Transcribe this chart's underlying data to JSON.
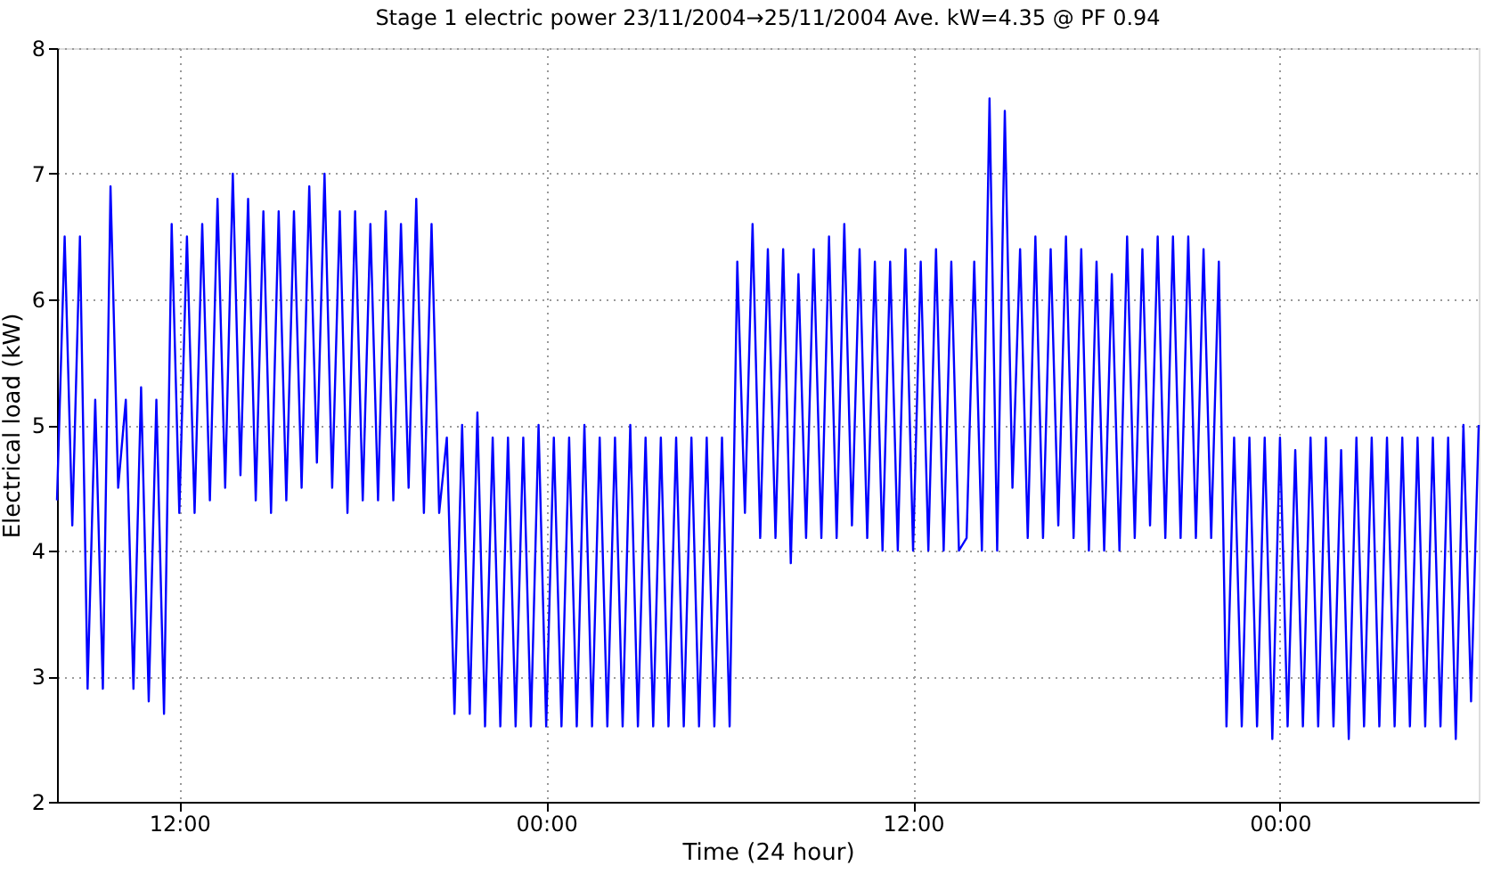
{
  "chart_data": {
    "type": "line",
    "title": "Stage 1 electric power 23/11/2004→25/11/2004 Ave. kW=4.35 @ PF 0.94",
    "xlabel": "Time (24 hour)",
    "ylabel": "Electrical load (kW)",
    "xlim": [
      "2004-11-23T08:00",
      "2004-11-25T06:30"
    ],
    "xticks": [
      {
        "value": "2004-11-23T12:00",
        "label": "12:00"
      },
      {
        "value": "2004-11-24T00:00",
        "label": "00:00"
      },
      {
        "value": "2004-11-24T12:00",
        "label": "12:00"
      },
      {
        "value": "2004-11-25T00:00",
        "label": "00:00"
      }
    ],
    "ylim": [
      2,
      8
    ],
    "yticks": [
      2,
      3,
      4,
      5,
      6,
      7,
      8
    ],
    "grid": true,
    "line_style": "solid",
    "marker": "none",
    "series": [
      {
        "color": "#0000ff",
        "x": [
          "2004-11-23T08:00",
          "2004-11-23T08:15",
          "2004-11-23T08:30",
          "2004-11-23T08:45",
          "2004-11-23T09:00",
          "2004-11-23T09:15",
          "2004-11-23T09:30",
          "2004-11-23T09:45",
          "2004-11-23T10:00",
          "2004-11-23T10:15",
          "2004-11-23T10:30",
          "2004-11-23T10:45",
          "2004-11-23T11:00",
          "2004-11-23T11:15",
          "2004-11-23T11:30",
          "2004-11-23T11:45",
          "2004-11-23T12:00",
          "2004-11-23T12:15",
          "2004-11-23T12:30",
          "2004-11-23T12:45",
          "2004-11-23T13:00",
          "2004-11-23T13:15",
          "2004-11-23T13:30",
          "2004-11-23T13:45",
          "2004-11-23T14:00",
          "2004-11-23T14:15",
          "2004-11-23T14:30",
          "2004-11-23T14:45",
          "2004-11-23T15:00",
          "2004-11-23T15:15",
          "2004-11-23T15:30",
          "2004-11-23T15:45",
          "2004-11-23T16:00",
          "2004-11-23T16:15",
          "2004-11-23T16:30",
          "2004-11-23T16:45",
          "2004-11-23T17:00",
          "2004-11-23T17:15",
          "2004-11-23T17:30",
          "2004-11-23T17:45",
          "2004-11-23T18:00",
          "2004-11-23T18:15",
          "2004-11-23T18:30",
          "2004-11-23T18:45",
          "2004-11-23T19:00",
          "2004-11-23T19:15",
          "2004-11-23T19:30",
          "2004-11-23T19:45",
          "2004-11-23T20:00",
          "2004-11-23T20:15",
          "2004-11-23T20:30",
          "2004-11-23T20:45",
          "2004-11-23T21:00",
          "2004-11-23T21:15",
          "2004-11-23T21:30",
          "2004-11-23T21:45",
          "2004-11-23T22:00",
          "2004-11-23T22:15",
          "2004-11-23T22:30",
          "2004-11-23T22:45",
          "2004-11-23T23:00",
          "2004-11-23T23:15",
          "2004-11-23T23:30",
          "2004-11-23T23:45",
          "2004-11-24T00:00",
          "2004-11-24T00:15",
          "2004-11-24T00:30",
          "2004-11-24T00:45",
          "2004-11-24T01:00",
          "2004-11-24T01:15",
          "2004-11-24T01:30",
          "2004-11-24T01:45",
          "2004-11-24T02:00",
          "2004-11-24T02:15",
          "2004-11-24T02:30",
          "2004-11-24T02:45",
          "2004-11-24T03:00",
          "2004-11-24T03:15",
          "2004-11-24T03:30",
          "2004-11-24T03:45",
          "2004-11-24T04:00",
          "2004-11-24T04:15",
          "2004-11-24T04:30",
          "2004-11-24T04:45",
          "2004-11-24T05:00",
          "2004-11-24T05:15",
          "2004-11-24T05:30",
          "2004-11-24T05:45",
          "2004-11-24T06:00",
          "2004-11-24T06:15",
          "2004-11-24T06:30",
          "2004-11-24T06:45",
          "2004-11-24T07:00",
          "2004-11-24T07:15",
          "2004-11-24T07:30",
          "2004-11-24T07:45",
          "2004-11-24T08:00",
          "2004-11-24T08:15",
          "2004-11-24T08:30",
          "2004-11-24T08:45",
          "2004-11-24T09:00",
          "2004-11-24T09:15",
          "2004-11-24T09:30",
          "2004-11-24T09:45",
          "2004-11-24T10:00",
          "2004-11-24T10:15",
          "2004-11-24T10:30",
          "2004-11-24T10:45",
          "2004-11-24T11:00",
          "2004-11-24T11:15",
          "2004-11-24T11:30",
          "2004-11-24T11:45",
          "2004-11-24T12:00",
          "2004-11-24T12:15",
          "2004-11-24T12:30",
          "2004-11-24T12:45",
          "2004-11-24T13:00",
          "2004-11-24T13:15",
          "2004-11-24T13:30",
          "2004-11-24T13:45",
          "2004-11-24T14:00",
          "2004-11-24T14:15",
          "2004-11-24T14:30",
          "2004-11-24T14:45",
          "2004-11-24T15:00",
          "2004-11-24T15:15",
          "2004-11-24T15:30",
          "2004-11-24T15:45",
          "2004-11-24T16:00",
          "2004-11-24T16:15",
          "2004-11-24T16:30",
          "2004-11-24T16:45",
          "2004-11-24T17:00",
          "2004-11-24T17:15",
          "2004-11-24T17:30",
          "2004-11-24T17:45",
          "2004-11-24T18:00",
          "2004-11-24T18:15",
          "2004-11-24T18:30",
          "2004-11-24T18:45",
          "2004-11-24T19:00",
          "2004-11-24T19:15",
          "2004-11-24T19:30",
          "2004-11-24T19:45",
          "2004-11-24T20:00",
          "2004-11-24T20:15",
          "2004-11-24T20:30",
          "2004-11-24T20:45",
          "2004-11-24T21:00",
          "2004-11-24T21:15",
          "2004-11-24T21:30",
          "2004-11-24T21:45",
          "2004-11-24T22:00",
          "2004-11-24T22:15",
          "2004-11-24T22:30",
          "2004-11-24T22:45",
          "2004-11-24T23:00",
          "2004-11-24T23:15",
          "2004-11-24T23:30",
          "2004-11-24T23:45",
          "2004-11-25T00:00",
          "2004-11-25T00:15",
          "2004-11-25T00:30",
          "2004-11-25T00:45",
          "2004-11-25T01:00",
          "2004-11-25T01:15",
          "2004-11-25T01:30",
          "2004-11-25T01:45",
          "2004-11-25T02:00",
          "2004-11-25T02:15",
          "2004-11-25T02:30",
          "2004-11-25T02:45",
          "2004-11-25T03:00",
          "2004-11-25T03:15",
          "2004-11-25T03:30",
          "2004-11-25T03:45",
          "2004-11-25T04:00",
          "2004-11-25T04:15",
          "2004-11-25T04:30",
          "2004-11-25T04:45",
          "2004-11-25T05:00",
          "2004-11-25T05:15",
          "2004-11-25T05:30",
          "2004-11-25T05:45",
          "2004-11-25T06:00",
          "2004-11-25T06:15",
          "2004-11-25T06:30"
        ],
        "values": [
          4.4,
          6.5,
          4.2,
          6.5,
          2.9,
          5.2,
          2.9,
          6.9,
          4.5,
          5.2,
          2.9,
          5.3,
          2.8,
          5.2,
          2.7,
          6.6,
          4.3,
          6.5,
          4.3,
          6.6,
          4.4,
          6.8,
          4.5,
          7.0,
          4.6,
          6.8,
          4.4,
          6.7,
          4.3,
          6.7,
          4.4,
          6.7,
          4.5,
          6.9,
          4.7,
          7.0,
          4.5,
          6.7,
          4.3,
          6.7,
          4.4,
          6.6,
          4.4,
          6.7,
          4.4,
          6.6,
          4.5,
          6.8,
          4.3,
          6.6,
          4.3,
          4.9,
          2.7,
          5.0,
          2.7,
          5.1,
          2.6,
          4.9,
          2.6,
          4.9,
          2.6,
          4.9,
          2.6,
          5.0,
          2.6,
          4.9,
          2.6,
          4.9,
          2.6,
          5.0,
          2.6,
          4.9,
          2.6,
          4.9,
          2.6,
          5.0,
          2.6,
          4.9,
          2.6,
          4.9,
          2.6,
          4.9,
          2.6,
          4.9,
          2.6,
          4.9,
          2.6,
          4.9,
          2.6,
          6.3,
          4.3,
          6.6,
          4.1,
          6.4,
          4.1,
          6.4,
          3.9,
          6.2,
          4.1,
          6.4,
          4.1,
          6.5,
          4.1,
          6.6,
          4.2,
          6.4,
          4.1,
          6.3,
          4.0,
          6.3,
          4.0,
          6.4,
          4.0,
          6.3,
          4.0,
          6.4,
          4.0,
          6.3,
          4.0,
          4.1,
          6.3,
          4.0,
          7.6,
          4.0,
          7.5,
          4.5,
          6.4,
          4.1,
          6.5,
          4.1,
          6.4,
          4.2,
          6.5,
          4.1,
          6.4,
          4.0,
          6.3,
          4.0,
          6.2,
          4.0,
          6.5,
          4.1,
          6.4,
          4.2,
          6.5,
          4.1,
          6.5,
          4.1,
          6.5,
          4.1,
          6.4,
          4.1,
          6.3,
          2.6,
          4.9,
          2.6,
          4.9,
          2.6,
          4.9,
          2.5,
          4.9,
          2.6,
          4.8,
          2.6,
          4.9,
          2.6,
          4.9,
          2.6,
          4.8,
          2.5,
          4.9,
          2.6,
          4.9,
          2.6,
          4.9,
          2.6,
          4.9,
          2.6,
          4.9,
          2.6,
          4.9,
          2.6,
          4.9,
          2.5,
          5.0,
          2.8,
          5.0
        ]
      }
    ]
  }
}
